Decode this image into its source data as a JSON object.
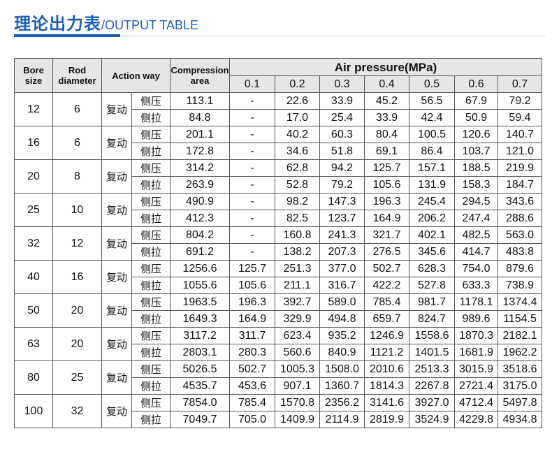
{
  "header": {
    "title_cn": "理论出力表",
    "title_en": "/OUTPUT TABLE"
  },
  "table": {
    "headers": {
      "bore": "Bore size",
      "rod": "Rod diameter",
      "action": "Action way",
      "area": "Compression area",
      "pressure": "Air pressure(MPa)"
    },
    "pressures": [
      "0.1",
      "0.2",
      "0.3",
      "0.4",
      "0.5",
      "0.6",
      "0.7"
    ],
    "rows": [
      {
        "bore": "12",
        "rod": "6",
        "action": "复动",
        "lines": [
          {
            "mode": "侧压",
            "area": "113.1",
            "forces": [
              "-",
              "22.6",
              "33.9",
              "45.2",
              "56.5",
              "67.9",
              "79.2"
            ]
          },
          {
            "mode": "侧拉",
            "area": "84.8",
            "forces": [
              "-",
              "17.0",
              "25.4",
              "33.9",
              "42.4",
              "50.9",
              "59.4"
            ]
          }
        ]
      },
      {
        "bore": "16",
        "rod": "6",
        "action": "复动",
        "lines": [
          {
            "mode": "侧压",
            "area": "201.1",
            "forces": [
              "-",
              "40.2",
              "60.3",
              "80.4",
              "100.5",
              "120.6",
              "140.7"
            ]
          },
          {
            "mode": "侧拉",
            "area": "172.8",
            "forces": [
              "-",
              "34.6",
              "51.8",
              "69.1",
              "86.4",
              "103.7",
              "121.0"
            ]
          }
        ]
      },
      {
        "bore": "20",
        "rod": "8",
        "action": "复动",
        "lines": [
          {
            "mode": "侧压",
            "area": "314.2",
            "forces": [
              "-",
              "62.8",
              "94.2",
              "125.7",
              "157.1",
              "188.5",
              "219.9"
            ]
          },
          {
            "mode": "侧拉",
            "area": "263.9",
            "forces": [
              "-",
              "52.8",
              "79.2",
              "105.6",
              "131.9",
              "158.3",
              "184.7"
            ]
          }
        ]
      },
      {
        "bore": "25",
        "rod": "10",
        "action": "复动",
        "lines": [
          {
            "mode": "侧压",
            "area": "490.9",
            "forces": [
              "-",
              "98.2",
              "147.3",
              "196.3",
              "245.4",
              "294.5",
              "343.6"
            ]
          },
          {
            "mode": "侧拉",
            "area": "412.3",
            "forces": [
              "-",
              "82.5",
              "123.7",
              "164.9",
              "206.2",
              "247.4",
              "288.6"
            ]
          }
        ]
      },
      {
        "bore": "32",
        "rod": "12",
        "action": "复动",
        "lines": [
          {
            "mode": "侧压",
            "area": "804.2",
            "forces": [
              "-",
              "160.8",
              "241.3",
              "321.7",
              "402.1",
              "482.5",
              "563.0"
            ]
          },
          {
            "mode": "侧拉",
            "area": "691.2",
            "forces": [
              "-",
              "138.2",
              "207.3",
              "276.5",
              "345.6",
              "414.7",
              "483.8"
            ]
          }
        ]
      },
      {
        "bore": "40",
        "rod": "16",
        "action": "复动",
        "lines": [
          {
            "mode": "侧压",
            "area": "1256.6",
            "forces": [
              "125.7",
              "251.3",
              "377.0",
              "502.7",
              "628.3",
              "754.0",
              "879.6"
            ]
          },
          {
            "mode": "侧拉",
            "area": "1055.6",
            "forces": [
              "105.6",
              "211.1",
              "316.7",
              "422.2",
              "527.8",
              "633.3",
              "738.9"
            ]
          }
        ]
      },
      {
        "bore": "50",
        "rod": "20",
        "action": "复动",
        "lines": [
          {
            "mode": "侧压",
            "area": "1963.5",
            "forces": [
              "196.3",
              "392.7",
              "589.0",
              "785.4",
              "981.7",
              "1178.1",
              "1374.4"
            ]
          },
          {
            "mode": "侧拉",
            "area": "1649.3",
            "forces": [
              "164.9",
              "329.9",
              "494.8",
              "659.7",
              "824.7",
              "989.6",
              "1154.5"
            ]
          }
        ]
      },
      {
        "bore": "63",
        "rod": "20",
        "action": "复动",
        "lines": [
          {
            "mode": "侧压",
            "area": "3117.2",
            "forces": [
              "311.7",
              "623.4",
              "935.2",
              "1246.9",
              "1558.6",
              "1870.3",
              "2182.1"
            ]
          },
          {
            "mode": "侧拉",
            "area": "2803.1",
            "forces": [
              "280.3",
              "560.6",
              "840.9",
              "1121.2",
              "1401.5",
              "1681.9",
              "1962.2"
            ]
          }
        ]
      },
      {
        "bore": "80",
        "rod": "25",
        "action": "复动",
        "lines": [
          {
            "mode": "侧压",
            "area": "5026.5",
            "forces": [
              "502.7",
              "1005.3",
              "1508.0",
              "2010.6",
              "2513.3",
              "3015.9",
              "3518.6"
            ]
          },
          {
            "mode": "侧拉",
            "area": "4535.7",
            "forces": [
              "453.6",
              "907.1",
              "1360.7",
              "1814.3",
              "2267.8",
              "2721.4",
              "3175.0"
            ]
          }
        ]
      },
      {
        "bore": "100",
        "rod": "32",
        "action": "复动",
        "lines": [
          {
            "mode": "侧压",
            "area": "7854.0",
            "forces": [
              "785.4",
              "1570.8",
              "2356.2",
              "3141.6",
              "3927.0",
              "4712.4",
              "5497.8"
            ]
          },
          {
            "mode": "侧拉",
            "area": "7049.7",
            "forces": [
              "705.0",
              "1409.9",
              "2114.9",
              "2819.9",
              "3524.9",
              "4229.8",
              "4934.8"
            ]
          }
        ]
      }
    ]
  }
}
